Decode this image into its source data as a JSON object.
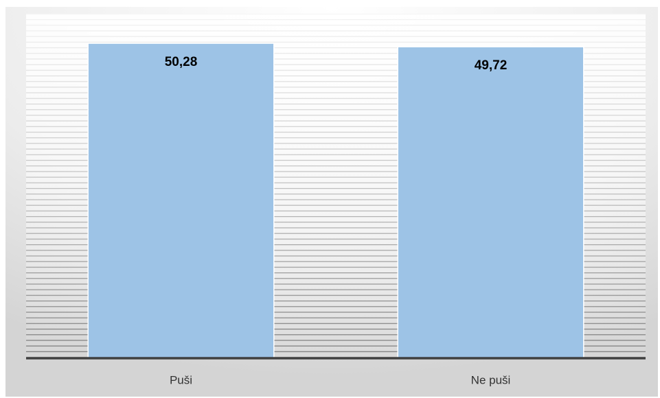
{
  "chart_data": {
    "type": "bar",
    "categories": [
      "Puši",
      "Ne puši"
    ],
    "values": [
      50.28,
      49.72
    ],
    "value_labels": [
      "50,28",
      "49,72"
    ],
    "color": "#9dc3e6",
    "ylim": [
      0,
      55
    ]
  }
}
